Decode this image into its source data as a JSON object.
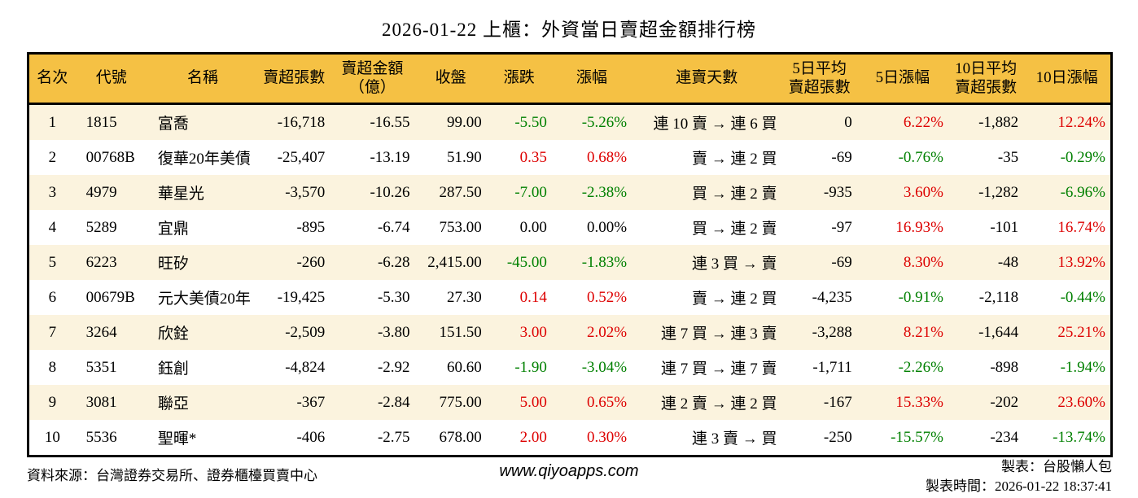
{
  "title": "2026-01-22 上櫃：外資當日賣超金額排行榜",
  "colors": {
    "up_red": "#dd0000",
    "down_green": "#008000",
    "header_bg": "#f5c144",
    "row_stripe": "#fbf3de",
    "table_border": "#000000"
  },
  "chart_data": {
    "type": "table",
    "title": "2026-01-22 上櫃：外資當日賣超金額排行榜",
    "columns": [
      "名次",
      "代號",
      "名稱",
      "賣超張數",
      "賣超金額\n（億）",
      "收盤",
      "漲跌",
      "漲幅",
      "連賣天數",
      "5日平均\n賣超張數",
      "5日漲幅",
      "10日平均\n賣超張數",
      "10日漲幅"
    ],
    "rows": [
      {
        "rank": "1",
        "code": "1815",
        "name": "富喬",
        "sell_volume": "-16,718",
        "sell_amount": "-16.55",
        "close": "99.00",
        "change": {
          "t": "-5.50",
          "c": "green"
        },
        "change_pct": {
          "t": "-5.26%",
          "c": "green"
        },
        "streak": "連 10 賣 → 連 6 買",
        "avg5_volume": "0",
        "pct5": {
          "t": "6.22%",
          "c": "red"
        },
        "avg10_volume": "-1,882",
        "pct10": {
          "t": "12.24%",
          "c": "red"
        }
      },
      {
        "rank": "2",
        "code": "00768B",
        "name": "復華20年美債",
        "sell_volume": "-25,407",
        "sell_amount": "-13.19",
        "close": "51.90",
        "change": {
          "t": "0.35",
          "c": "red"
        },
        "change_pct": {
          "t": "0.68%",
          "c": "red"
        },
        "streak": "賣 → 連 2 買",
        "avg5_volume": "-69",
        "pct5": {
          "t": "-0.76%",
          "c": "green"
        },
        "avg10_volume": "-35",
        "pct10": {
          "t": "-0.29%",
          "c": "green"
        }
      },
      {
        "rank": "3",
        "code": "4979",
        "name": "華星光",
        "sell_volume": "-3,570",
        "sell_amount": "-10.26",
        "close": "287.50",
        "change": {
          "t": "-7.00",
          "c": "green"
        },
        "change_pct": {
          "t": "-2.38%",
          "c": "green"
        },
        "streak": "買 → 連 2 賣",
        "avg5_volume": "-935",
        "pct5": {
          "t": "3.60%",
          "c": "red"
        },
        "avg10_volume": "-1,282",
        "pct10": {
          "t": "-6.96%",
          "c": "green"
        }
      },
      {
        "rank": "4",
        "code": "5289",
        "name": "宜鼎",
        "sell_volume": "-895",
        "sell_amount": "-6.74",
        "close": "753.00",
        "change": {
          "t": "0.00",
          "c": "black"
        },
        "change_pct": {
          "t": "0.00%",
          "c": "black"
        },
        "streak": "買 → 連 2 賣",
        "avg5_volume": "-97",
        "pct5": {
          "t": "16.93%",
          "c": "red"
        },
        "avg10_volume": "-101",
        "pct10": {
          "t": "16.74%",
          "c": "red"
        }
      },
      {
        "rank": "5",
        "code": "6223",
        "name": "旺矽",
        "sell_volume": "-260",
        "sell_amount": "-6.28",
        "close": "2,415.00",
        "change": {
          "t": "-45.00",
          "c": "green"
        },
        "change_pct": {
          "t": "-1.83%",
          "c": "green"
        },
        "streak": "連 3 買 → 賣",
        "avg5_volume": "-69",
        "pct5": {
          "t": "8.30%",
          "c": "red"
        },
        "avg10_volume": "-48",
        "pct10": {
          "t": "13.92%",
          "c": "red"
        }
      },
      {
        "rank": "6",
        "code": "00679B",
        "name": "元大美債20年",
        "sell_volume": "-19,425",
        "sell_amount": "-5.30",
        "close": "27.30",
        "change": {
          "t": "0.14",
          "c": "red"
        },
        "change_pct": {
          "t": "0.52%",
          "c": "red"
        },
        "streak": "賣 → 連 2 買",
        "avg5_volume": "-4,235",
        "pct5": {
          "t": "-0.91%",
          "c": "green"
        },
        "avg10_volume": "-2,118",
        "pct10": {
          "t": "-0.44%",
          "c": "green"
        }
      },
      {
        "rank": "7",
        "code": "3264",
        "name": "欣銓",
        "sell_volume": "-2,509",
        "sell_amount": "-3.80",
        "close": "151.50",
        "change": {
          "t": "3.00",
          "c": "red"
        },
        "change_pct": {
          "t": "2.02%",
          "c": "red"
        },
        "streak": "連 7 買 → 連 3 賣",
        "avg5_volume": "-3,288",
        "pct5": {
          "t": "8.21%",
          "c": "red"
        },
        "avg10_volume": "-1,644",
        "pct10": {
          "t": "25.21%",
          "c": "red"
        }
      },
      {
        "rank": "8",
        "code": "5351",
        "name": "鈺創",
        "sell_volume": "-4,824",
        "sell_amount": "-2.92",
        "close": "60.60",
        "change": {
          "t": "-1.90",
          "c": "green"
        },
        "change_pct": {
          "t": "-3.04%",
          "c": "green"
        },
        "streak": "連 7 買 → 連 7 賣",
        "avg5_volume": "-1,711",
        "pct5": {
          "t": "-2.26%",
          "c": "green"
        },
        "avg10_volume": "-898",
        "pct10": {
          "t": "-1.94%",
          "c": "green"
        }
      },
      {
        "rank": "9",
        "code": "3081",
        "name": "聯亞",
        "sell_volume": "-367",
        "sell_amount": "-2.84",
        "close": "775.00",
        "change": {
          "t": "5.00",
          "c": "red"
        },
        "change_pct": {
          "t": "0.65%",
          "c": "red"
        },
        "streak": "連 2 賣 → 連 2 買",
        "avg5_volume": "-167",
        "pct5": {
          "t": "15.33%",
          "c": "red"
        },
        "avg10_volume": "-202",
        "pct10": {
          "t": "23.60%",
          "c": "red"
        }
      },
      {
        "rank": "10",
        "code": "5536",
        "name": "聖暉*",
        "sell_volume": "-406",
        "sell_amount": "-2.75",
        "close": "678.00",
        "change": {
          "t": "2.00",
          "c": "red"
        },
        "change_pct": {
          "t": "0.30%",
          "c": "red"
        },
        "streak": "連 3 賣 → 買",
        "avg5_volume": "-250",
        "pct5": {
          "t": "-15.57%",
          "c": "green"
        },
        "avg10_volume": "-234",
        "pct10": {
          "t": "-13.74%",
          "c": "green"
        }
      }
    ]
  },
  "footer": {
    "source": "資料來源：台灣證券交易所、證券櫃檯買賣中心",
    "url": "www.qiyoapps.com",
    "maker": "製表：台股懶人包",
    "made_at": "製表時間：2026-01-22 18:37:41"
  }
}
